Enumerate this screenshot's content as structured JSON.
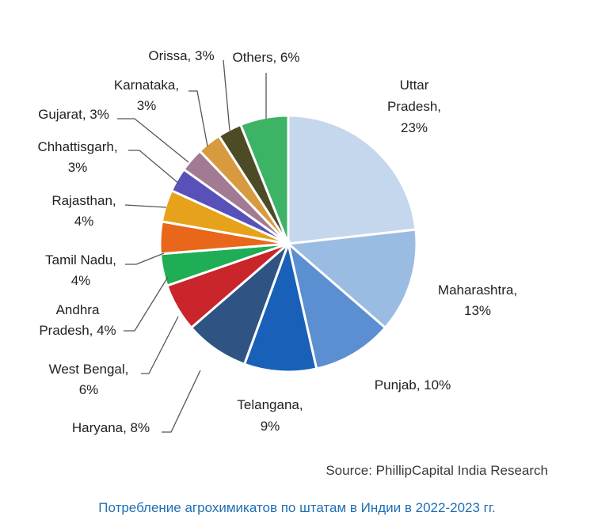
{
  "chart_data": {
    "type": "pie",
    "start": "top",
    "direction": "clockwise",
    "slices": [
      {
        "label": "Uttar Pradesh",
        "display": [
          "Uttar",
          "Pradesh,",
          "23%"
        ],
        "value": 23,
        "color": "#c5d7ec"
      },
      {
        "label": "Maharashtra",
        "display": [
          "Maharashtra,",
          "13%"
        ],
        "value": 13,
        "color": "#9bbce2"
      },
      {
        "label": "Punjab",
        "display": [
          "Punjab, 10%"
        ],
        "value": 10,
        "color": "#5b8fd1"
      },
      {
        "label": "Telangana",
        "display": [
          "Telangana,",
          "9%"
        ],
        "value": 9,
        "color": "#1960b8"
      },
      {
        "label": "Haryana",
        "display": [
          "Haryana, 8%"
        ],
        "value": 8,
        "color": "#2f5484"
      },
      {
        "label": "West Bengal",
        "display": [
          "West Bengal,",
          "6%"
        ],
        "value": 6,
        "color": "#c9252b"
      },
      {
        "label": "Andhra Pradesh",
        "display": [
          "Andhra",
          "Pradesh, 4%"
        ],
        "value": 4,
        "color": "#1fae55"
      },
      {
        "label": "Tamil Nadu",
        "display": [
          "Tamil Nadu,",
          "4%"
        ],
        "value": 4,
        "color": "#e8671b"
      },
      {
        "label": "Rajasthan",
        "display": [
          "Rajasthan,",
          "4%"
        ],
        "value": 4,
        "color": "#e5a21a"
      },
      {
        "label": "Chhattisgarh",
        "display": [
          "Chhattisgarh,",
          "3%"
        ],
        "value": 3,
        "color": "#5751b9"
      },
      {
        "label": "Gujarat",
        "display": [
          "Gujarat, 3%"
        ],
        "value": 3,
        "color": "#a27a94"
      },
      {
        "label": "Karnataka",
        "display": [
          "Karnataka,",
          "3%"
        ],
        "value": 3,
        "color": "#d89a3e"
      },
      {
        "label": "Orissa",
        "display": [
          "Orissa, 3%"
        ],
        "value": 3,
        "color": "#4d4a26"
      },
      {
        "label": "Others",
        "display": [
          "Others, 6%"
        ],
        "value": 6,
        "color": "#3db366"
      }
    ],
    "source": "Source: PhillipCapital India Research"
  },
  "caption": "Потребление агрохимикатов по штатам в Индии в 2022-2023 гг."
}
